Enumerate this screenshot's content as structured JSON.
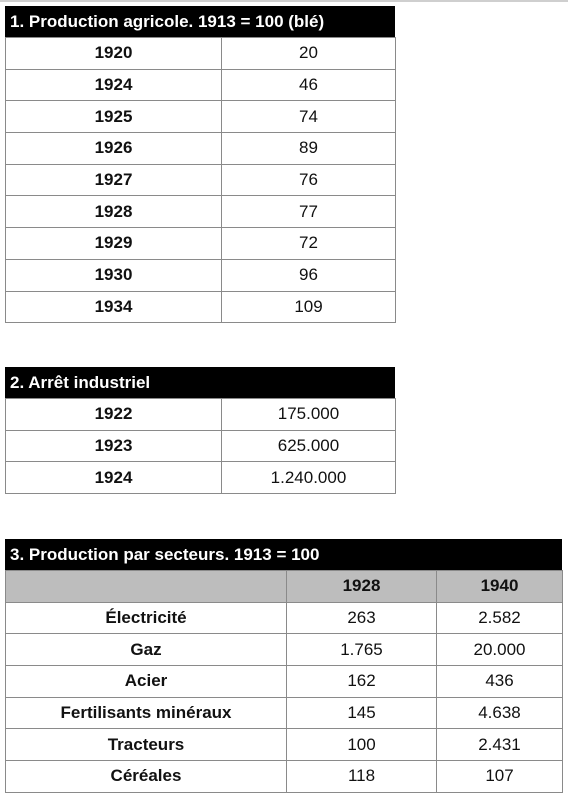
{
  "tables": [
    {
      "title": "1. Production agricole. 1913 = 100 (blé)",
      "rows": [
        {
          "year": "1920",
          "value": "20"
        },
        {
          "year": "1924",
          "value": "46"
        },
        {
          "year": "1925",
          "value": "74"
        },
        {
          "year": "1926",
          "value": "89"
        },
        {
          "year": "1927",
          "value": "76"
        },
        {
          "year": "1928",
          "value": "77"
        },
        {
          "year": "1929",
          "value": "72"
        },
        {
          "year": "1930",
          "value": "96"
        },
        {
          "year": "1934",
          "value": "109"
        }
      ]
    },
    {
      "title": "2. Arrêt industriel",
      "rows": [
        {
          "year": "1922",
          "value": "175.000"
        },
        {
          "year": "1923",
          "value": "625.000"
        },
        {
          "year": "1924",
          "value": "1.240.000"
        }
      ]
    },
    {
      "title": "3. Production par secteurs. 1913 = 100",
      "columns": [
        "1928",
        "1940"
      ],
      "rows": [
        {
          "sector": "Électricité",
          "values": [
            "263",
            "2.582"
          ]
        },
        {
          "sector": "Gaz",
          "values": [
            "1.765",
            "20.000"
          ]
        },
        {
          "sector": "Acier",
          "values": [
            "162",
            "436"
          ]
        },
        {
          "sector": "Fertilisants minéraux",
          "values": [
            "145",
            "4.638"
          ]
        },
        {
          "sector": "Tracteurs",
          "values": [
            "100",
            "2.431"
          ]
        },
        {
          "sector": "Céréales",
          "values": [
            "118",
            "107"
          ]
        }
      ]
    }
  ]
}
